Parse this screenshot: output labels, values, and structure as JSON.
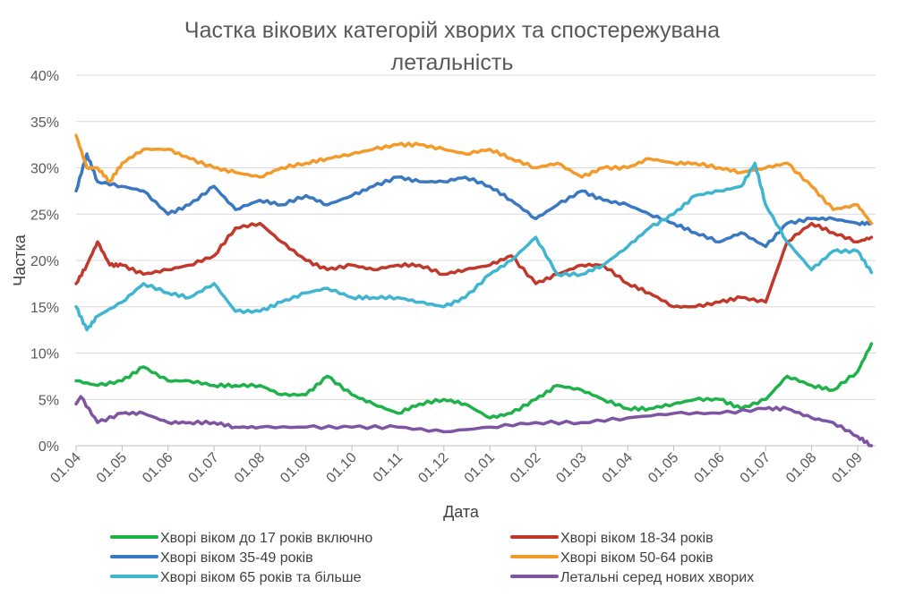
{
  "chart_data": {
    "type": "line",
    "title": [
      "Частка вікових категорій хворих та спостережувана",
      "летальність"
    ],
    "xlabel": "Дата",
    "ylabel": "Частка",
    "ylim": [
      0,
      40
    ],
    "yticks": [
      "0%",
      "5%",
      "10%",
      "15%",
      "20%",
      "25%",
      "30%",
      "35%",
      "40%"
    ],
    "xticks": [
      "01.04",
      "01.05",
      "01.06",
      "01.07",
      "01.08",
      "01.09",
      "01.10",
      "01.11",
      "01.12",
      "01.01",
      "01.02",
      "01.03",
      "01.04",
      "01.05",
      "01.06",
      "01.07",
      "01.08",
      "01.09"
    ],
    "grid": "horizontal",
    "legend_position": "bottom",
    "series": [
      {
        "name": "Хворі віком до 17 років включно",
        "color": "#1fb24a",
        "points": [
          [
            "01.04",
            7
          ],
          [
            "15.04",
            6.5
          ],
          [
            "01.05",
            7
          ],
          [
            "15.05",
            8.5
          ],
          [
            "01.06",
            7
          ],
          [
            "15.06",
            7
          ],
          [
            "01.07",
            6.5
          ],
          [
            "15.07",
            6.5
          ],
          [
            "01.08",
            6.5
          ],
          [
            "15.08",
            5.5
          ],
          [
            "01.09",
            5.5
          ],
          [
            "15.09",
            7.5
          ],
          [
            "01.10",
            5.5
          ],
          [
            "15.10",
            4.5
          ],
          [
            "01.11",
            3.5
          ],
          [
            "15.11",
            4.5
          ],
          [
            "01.12",
            5
          ],
          [
            "15.12",
            4.5
          ],
          [
            "01.01",
            3
          ],
          [
            "15.01",
            3.5
          ],
          [
            "01.02",
            5
          ],
          [
            "15.02",
            6.5
          ],
          [
            "01.03",
            6
          ],
          [
            "15.03",
            5
          ],
          [
            "01.04",
            4
          ],
          [
            "15.04",
            4
          ],
          [
            "01.05",
            4.5
          ],
          [
            "15.05",
            5
          ],
          [
            "01.06",
            5
          ],
          [
            "15.06",
            4
          ],
          [
            "01.07",
            5
          ],
          [
            "15.07",
            7.5
          ],
          [
            "01.08",
            6.5
          ],
          [
            "15.08",
            6
          ],
          [
            "01.09",
            8
          ],
          [
            "10.09",
            11
          ]
        ]
      },
      {
        "name": "Хворі віком 18-34 років",
        "color": "#c0392b",
        "points": [
          [
            "01.04",
            17.5
          ],
          [
            "08.04",
            19.5
          ],
          [
            "15.04",
            22
          ],
          [
            "23.04",
            19.5
          ],
          [
            "01.05",
            19.5
          ],
          [
            "15.05",
            18.5
          ],
          [
            "01.06",
            19
          ],
          [
            "15.06",
            19.5
          ],
          [
            "01.07",
            20.5
          ],
          [
            "15.07",
            23.5
          ],
          [
            "01.08",
            24
          ],
          [
            "15.08",
            22
          ],
          [
            "01.09",
            20
          ],
          [
            "15.09",
            19
          ],
          [
            "01.10",
            19.5
          ],
          [
            "15.10",
            19
          ],
          [
            "01.11",
            19.5
          ],
          [
            "15.11",
            19.5
          ],
          [
            "01.12",
            18.5
          ],
          [
            "15.12",
            19
          ],
          [
            "01.01",
            19.5
          ],
          [
            "15.01",
            20.5
          ],
          [
            "01.02",
            17.5
          ],
          [
            "15.02",
            18.5
          ],
          [
            "01.03",
            19.5
          ],
          [
            "15.03",
            19.5
          ],
          [
            "01.04",
            17.5
          ],
          [
            "15.04",
            16.5
          ],
          [
            "01.05",
            15
          ],
          [
            "15.05",
            15
          ],
          [
            "01.06",
            15.5
          ],
          [
            "15.06",
            16
          ],
          [
            "01.07",
            15.5
          ],
          [
            "15.07",
            22
          ],
          [
            "01.08",
            24
          ],
          [
            "15.08",
            23
          ],
          [
            "01.09",
            22
          ],
          [
            "10.09",
            22.5
          ]
        ]
      },
      {
        "name": "Хворі віком 35-49 років",
        "color": "#3a78c2",
        "points": [
          [
            "01.04",
            27.5
          ],
          [
            "08.04",
            31.5
          ],
          [
            "15.04",
            28.5
          ],
          [
            "01.05",
            28
          ],
          [
            "15.05",
            27.5
          ],
          [
            "01.06",
            25
          ],
          [
            "15.06",
            26
          ],
          [
            "01.07",
            28
          ],
          [
            "15.07",
            25.5
          ],
          [
            "01.08",
            26.5
          ],
          [
            "15.08",
            26
          ],
          [
            "01.09",
            27
          ],
          [
            "15.09",
            26
          ],
          [
            "01.10",
            27
          ],
          [
            "15.10",
            28
          ],
          [
            "01.11",
            29
          ],
          [
            "15.11",
            28.5
          ],
          [
            "01.12",
            28.5
          ],
          [
            "15.12",
            29
          ],
          [
            "01.01",
            28
          ],
          [
            "15.01",
            26.5
          ],
          [
            "01.02",
            24.5
          ],
          [
            "15.02",
            26
          ],
          [
            "01.03",
            27.5
          ],
          [
            "15.03",
            26.5
          ],
          [
            "01.04",
            26
          ],
          [
            "15.04",
            25
          ],
          [
            "01.05",
            24
          ],
          [
            "15.05",
            23
          ],
          [
            "01.06",
            22
          ],
          [
            "15.06",
            23
          ],
          [
            "01.07",
            21.5
          ],
          [
            "15.07",
            24
          ],
          [
            "01.08",
            24.5
          ],
          [
            "15.08",
            24.5
          ],
          [
            "01.09",
            24
          ],
          [
            "10.09",
            24
          ]
        ]
      },
      {
        "name": "Хворі віком 50-64 років",
        "color": "#f39a2b",
        "points": [
          [
            "01.04",
            33.5
          ],
          [
            "08.04",
            30
          ],
          [
            "15.04",
            30
          ],
          [
            "23.04",
            28.5
          ],
          [
            "01.05",
            30.5
          ],
          [
            "15.05",
            32
          ],
          [
            "01.06",
            32
          ],
          [
            "15.06",
            31
          ],
          [
            "01.07",
            30
          ],
          [
            "15.07",
            29.5
          ],
          [
            "01.08",
            29
          ],
          [
            "15.08",
            30
          ],
          [
            "01.09",
            30.5
          ],
          [
            "15.09",
            31
          ],
          [
            "01.10",
            31.5
          ],
          [
            "15.10",
            32
          ],
          [
            "01.11",
            32.5
          ],
          [
            "15.11",
            32.5
          ],
          [
            "01.12",
            32
          ],
          [
            "15.12",
            31.5
          ],
          [
            "01.01",
            32
          ],
          [
            "15.01",
            31
          ],
          [
            "01.02",
            30
          ],
          [
            "15.02",
            30.5
          ],
          [
            "01.03",
            29
          ],
          [
            "15.03",
            30
          ],
          [
            "01.04",
            30
          ],
          [
            "15.04",
            31
          ],
          [
            "01.05",
            30.5
          ],
          [
            "15.05",
            30.5
          ],
          [
            "01.06",
            30
          ],
          [
            "15.06",
            29.5
          ],
          [
            "01.07",
            30
          ],
          [
            "15.07",
            30.5
          ],
          [
            "01.08",
            28
          ],
          [
            "15.08",
            25.5
          ],
          [
            "01.09",
            26
          ],
          [
            "10.09",
            24
          ]
        ]
      },
      {
        "name": "Хворі віком 65 років та більше",
        "color": "#3fb5d0",
        "points": [
          [
            "01.04",
            15
          ],
          [
            "08.04",
            12.5
          ],
          [
            "15.04",
            14
          ],
          [
            "01.05",
            15.5
          ],
          [
            "15.05",
            17.5
          ],
          [
            "01.06",
            16.5
          ],
          [
            "15.06",
            16
          ],
          [
            "01.07",
            17.5
          ],
          [
            "15.07",
            14.5
          ],
          [
            "01.08",
            14.5
          ],
          [
            "15.08",
            15.5
          ],
          [
            "01.09",
            16.5
          ],
          [
            "15.09",
            17
          ],
          [
            "01.10",
            16
          ],
          [
            "15.10",
            16
          ],
          [
            "01.11",
            16
          ],
          [
            "15.11",
            15.5
          ],
          [
            "01.12",
            15
          ],
          [
            "15.12",
            16
          ],
          [
            "01.01",
            18.5
          ],
          [
            "15.01",
            20
          ],
          [
            "01.02",
            22.5
          ],
          [
            "15.02",
            18.5
          ],
          [
            "01.03",
            18.5
          ],
          [
            "15.03",
            19.5
          ],
          [
            "01.04",
            21.5
          ],
          [
            "15.04",
            23.5
          ],
          [
            "01.05",
            25
          ],
          [
            "15.05",
            27
          ],
          [
            "01.06",
            27.5
          ],
          [
            "15.06",
            28
          ],
          [
            "24.06",
            30.5
          ],
          [
            "01.07",
            26
          ],
          [
            "15.07",
            22
          ],
          [
            "01.08",
            19
          ],
          [
            "15.08",
            21
          ],
          [
            "01.09",
            21
          ],
          [
            "10.09",
            18.7
          ]
        ]
      },
      {
        "name": "Летальні серед нових хворих",
        "color": "#7e55a3",
        "points": [
          [
            "01.04",
            4.5
          ],
          [
            "04.04",
            5.3
          ],
          [
            "15.04",
            2.5
          ],
          [
            "01.05",
            3.5
          ],
          [
            "15.05",
            3.5
          ],
          [
            "01.06",
            2.5
          ],
          [
            "15.06",
            2.5
          ],
          [
            "01.07",
            2.5
          ],
          [
            "15.07",
            2
          ],
          [
            "01.08",
            2
          ],
          [
            "01.09",
            2
          ],
          [
            "01.10",
            2
          ],
          [
            "01.11",
            2
          ],
          [
            "01.12",
            1.5
          ],
          [
            "01.01",
            2
          ],
          [
            "01.02",
            2.5
          ],
          [
            "01.03",
            2.5
          ],
          [
            "01.04",
            3
          ],
          [
            "01.05",
            3.5
          ],
          [
            "01.06",
            3.5
          ],
          [
            "01.07",
            4
          ],
          [
            "15.07",
            4
          ],
          [
            "01.08",
            3
          ],
          [
            "15.08",
            2.5
          ],
          [
            "01.09",
            1
          ],
          [
            "10.09",
            0
          ]
        ]
      }
    ]
  }
}
